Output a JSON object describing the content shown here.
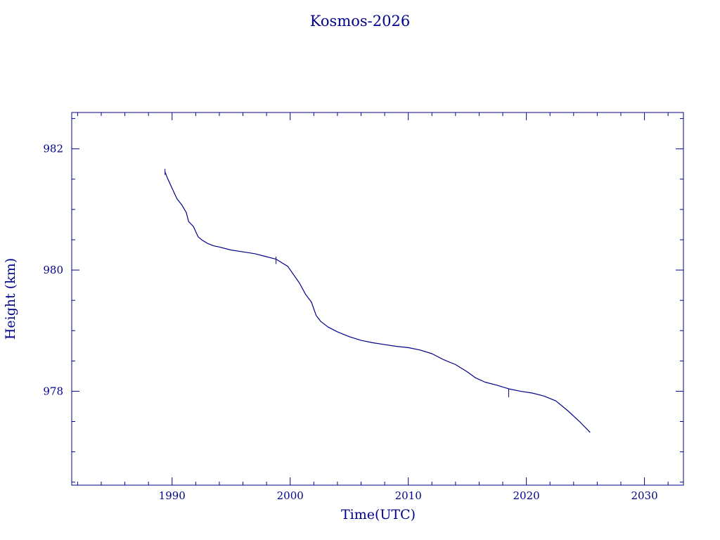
{
  "chart_data": {
    "type": "line",
    "title": "Kosmos-2026",
    "xlabel": "Time(UTC)",
    "ylabel": "Height (km)",
    "xlim": [
      1981.5,
      2033.3
    ],
    "ylim": [
      976.45,
      982.6
    ],
    "x_ticks": [
      1990,
      2000,
      2010,
      2020,
      2030
    ],
    "x_tick_labels": [
      "1990",
      "2000",
      "2010",
      "2020",
      "2030"
    ],
    "y_ticks": [
      978,
      980,
      982
    ],
    "y_tick_labels": [
      "978",
      "980",
      "982"
    ],
    "grid": false,
    "color": "#00008b",
    "series": [
      {
        "x": [
          1989.4,
          1989.6,
          1990.0,
          1990.4,
          1990.8,
          1991.2,
          1991.4,
          1991.8,
          1992.2,
          1992.5,
          1993.0,
          1993.5,
          1994.0,
          1995.0,
          1996.0,
          1997.0,
          1998.0,
          1998.8,
          1999.3,
          1999.8,
          2000.3,
          2000.8,
          2001.3,
          2001.8,
          2002.2,
          2002.6,
          2003.2,
          2004.0,
          2005.0,
          2006.0,
          2007.0,
          2008.0,
          2009.0,
          2010.0,
          2011.0,
          2012.0,
          2013.0,
          2014.0,
          2015.0,
          2015.7,
          2016.5,
          2017.5,
          2018.5,
          2019.5,
          2020.5,
          2021.5,
          2022.5,
          2023.5,
          2024.5,
          2025.4
        ],
        "y": [
          981.62,
          981.52,
          981.35,
          981.18,
          981.08,
          980.95,
          980.8,
          980.72,
          980.55,
          980.5,
          980.44,
          980.4,
          980.38,
          980.33,
          980.3,
          980.27,
          980.22,
          980.18,
          980.12,
          980.06,
          979.92,
          979.78,
          979.6,
          979.47,
          979.25,
          979.15,
          979.06,
          978.98,
          978.9,
          978.84,
          978.8,
          978.77,
          978.74,
          978.72,
          978.68,
          978.62,
          978.52,
          978.44,
          978.32,
          978.22,
          978.15,
          978.1,
          978.04,
          978.0,
          977.97,
          977.92,
          977.84,
          977.68,
          977.5,
          977.32
        ]
      }
    ],
    "spikes": [
      {
        "x": 1989.4,
        "y_from": 981.57,
        "y_to": 981.67
      },
      {
        "x": 1998.8,
        "y_from": 980.1,
        "y_to": 980.22
      },
      {
        "x": 2018.5,
        "y_from": 977.9,
        "y_to": 978.04
      }
    ]
  }
}
